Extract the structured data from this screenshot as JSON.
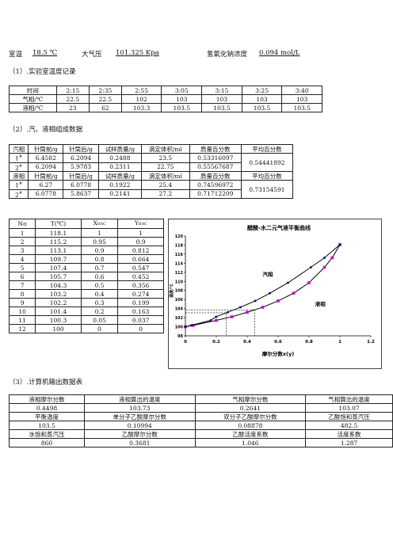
{
  "conditions": {
    "room_temp_label": "室温",
    "room_temp_value": "18.5",
    "room_temp_unit": "℃",
    "pressure_label": "大气压",
    "pressure_value": "101.325",
    "pressure_unit": "Kpa",
    "naoh_label": "氢氧化钠浓度",
    "naoh_value": "0.094",
    "naoh_unit": "mol/L"
  },
  "section1": {
    "title": "（1）.实验室温度记录",
    "rows": [
      [
        "时间",
        "2:15",
        "2:35",
        "2:55",
        "3:05",
        "3:15",
        "3:25",
        "3:40"
      ],
      [
        "气相/℃",
        "22.5",
        "22.5",
        "102",
        "103",
        "103",
        "103",
        "103"
      ],
      [
        "液相/℃",
        "23",
        "62",
        "103.3",
        "103.5",
        "103.5",
        "103.5",
        "103.5"
      ]
    ]
  },
  "section2": {
    "title": "（2）.汽、液相组成数据",
    "vapor_headers": [
      "汽相",
      "针筒前/g",
      "针筒后/g",
      "试样质量/g",
      "滴定体积/ml",
      "质量百分数",
      "平均百分数"
    ],
    "vapor_rows": [
      {
        "label": "1",
        "sup": "#",
        "v": [
          "6.4582",
          "6.2094",
          "0.2488",
          "23.5",
          "0.53316097"
        ]
      },
      {
        "label": "2",
        "sup": "#",
        "v": [
          "6.2094",
          "5.9783",
          "0.2311",
          "22.75",
          "0.55567687"
        ]
      }
    ],
    "vapor_avg": "0.54441892",
    "liquid_headers": [
      "液相",
      "针筒前/g",
      "针筒后/g",
      "试样质量/g",
      "滴定体积/ml",
      "质量百分数",
      "平均百分数"
    ],
    "liquid_rows": [
      {
        "label": "1",
        "sup": "#",
        "v": [
          "6.27",
          "6.0778",
          "0.1922",
          "25.4",
          "0.74596972"
        ]
      },
      {
        "label": "2",
        "sup": "#",
        "v": [
          "6.0778",
          "5.8637",
          "0.2141",
          "27.2",
          "0.71712209"
        ]
      }
    ],
    "liquid_avg": "0.73154591"
  },
  "equilibrium_table": {
    "headers": {
      "no": "No",
      "t": "T(℃)",
      "x": "X",
      "x_sub": "HAC",
      "y": "Y",
      "y_sub": "HAC"
    },
    "rows": [
      [
        "1",
        "118.1",
        "1",
        "1"
      ],
      [
        "2",
        "115.2",
        "0.95",
        "0.9"
      ],
      [
        "3",
        "113.1",
        "0.9",
        "0.812"
      ],
      [
        "4",
        "109.7",
        "0.8",
        "0.664"
      ],
      [
        "5",
        "107.4",
        "0.7",
        "0.547"
      ],
      [
        "6",
        "105.7",
        "0.6",
        "0.452"
      ],
      [
        "7",
        "104.3",
        "0.5",
        "0.356"
      ],
      [
        "8",
        "103.2",
        "0.4",
        "0.274"
      ],
      [
        "9",
        "102.2",
        "0.3",
        "0.199"
      ],
      [
        "10",
        "101.4",
        "0.2",
        "0.163"
      ],
      [
        "11",
        "100.3",
        "0.05",
        "0.037"
      ],
      [
        "12",
        "100",
        "0",
        "0"
      ]
    ]
  },
  "chart_data": {
    "type": "line",
    "title": "醋酸-水二元气液平衡曲线",
    "xlabel": "摩尔分数x(y)",
    "ylabel": "温度/℃",
    "xlim": [
      0,
      1.2
    ],
    "ylim": [
      98,
      120
    ],
    "xticks": [
      "0",
      "0.2",
      "0.4",
      "0.6",
      "0.8",
      "1",
      "1.2"
    ],
    "yticks": [
      "98",
      "100",
      "102",
      "104",
      "106",
      "108",
      "110",
      "112",
      "114",
      "116",
      "118",
      "120"
    ],
    "grid": false,
    "annotations": [
      "汽相",
      "液相"
    ],
    "series": [
      {
        "points": [
          [
            0,
            100
          ],
          [
            0.05,
            100.3
          ],
          [
            0.2,
            101.4
          ],
          [
            0.3,
            102.2
          ],
          [
            0.4,
            103.2
          ],
          [
            0.5,
            104.3
          ],
          [
            0.6,
            105.7
          ],
          [
            0.7,
            107.4
          ],
          [
            0.8,
            109.7
          ],
          [
            0.9,
            113.1
          ],
          [
            0.95,
            115.2
          ],
          [
            1,
            118.1
          ]
        ],
        "color": "#cc00cc"
      },
      {
        "points": [
          [
            0,
            100
          ],
          [
            0.037,
            100.3
          ],
          [
            0.163,
            101.4
          ],
          [
            0.199,
            102.2
          ],
          [
            0.274,
            103.2
          ],
          [
            0.356,
            104.3
          ],
          [
            0.452,
            105.7
          ],
          [
            0.547,
            107.4
          ],
          [
            0.664,
            109.7
          ],
          [
            0.812,
            113.1
          ],
          [
            0.9,
            115.2
          ],
          [
            1,
            118.1
          ]
        ],
        "color": "#000080"
      }
    ],
    "guides": [
      {
        "x": 0.2641,
        "y": 103.07
      },
      {
        "x": 0.4498,
        "y": 103.73
      }
    ]
  },
  "section3": {
    "title": "（3）.计算机输出数据表",
    "rows": [
      [
        "液相摩尔分数",
        "液相算出的温度",
        "气相摩尔分数",
        "气相算出的温度"
      ],
      [
        "0.4498",
        "103.73",
        "0.2641",
        "103.07"
      ],
      [
        "平衡温度",
        "单分子乙酸摩尔分数",
        "双分子乙酸摩尔分数",
        "乙酸饱和蒸汽压"
      ],
      [
        "103.5",
        "0.10994",
        "0.08878",
        "482.5"
      ],
      [
        "水饱和蒸汽压",
        "乙酸摩尔分数",
        "乙酸活度系数",
        "活度系数"
      ],
      [
        "860",
        "0.3681",
        "1.046",
        "1.287"
      ]
    ]
  }
}
